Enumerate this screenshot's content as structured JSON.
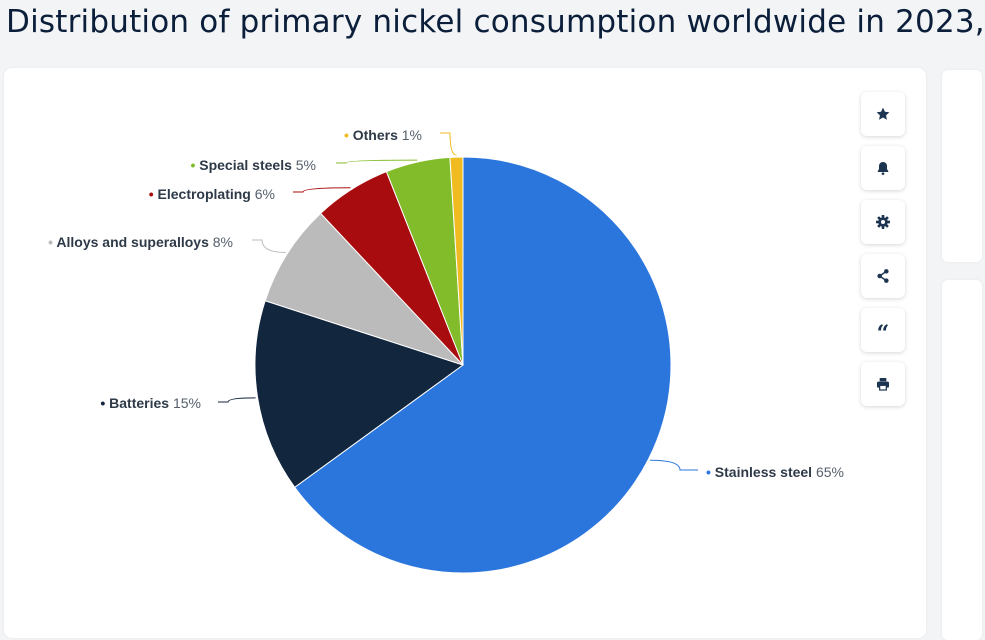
{
  "page": {
    "title": "Distribution of primary nickel consumption worldwide in 2023,"
  },
  "toolbar": {
    "items": [
      {
        "icon": "star-icon",
        "action": "favorite"
      },
      {
        "icon": "bell-icon",
        "action": "notification"
      },
      {
        "icon": "gear-icon",
        "action": "settings"
      },
      {
        "icon": "share-icon",
        "action": "share"
      },
      {
        "icon": "quote-icon",
        "action": "cite",
        "glyph": "“"
      },
      {
        "icon": "printer-icon",
        "action": "print"
      }
    ]
  },
  "chart_data": {
    "type": "pie",
    "unit": "%",
    "start_angle": 0,
    "direction": "clockwise",
    "slices": [
      {
        "label": "Stainless steel",
        "value": 65,
        "display": "65%",
        "color": "#2a76dd"
      },
      {
        "label": "Batteries",
        "value": 15,
        "display": "15%",
        "color": "#12263d"
      },
      {
        "label": "Alloys and superalloys",
        "value": 8,
        "display": "8%",
        "color": "#bbbbbb"
      },
      {
        "label": "Electroplating",
        "value": 6,
        "display": "6%",
        "color": "#a80c0e"
      },
      {
        "label": "Special steels",
        "value": 5,
        "display": "5%",
        "color": "#83bc2a"
      },
      {
        "label": "Others",
        "value": 1,
        "display": "1%",
        "color": "#f0bb20"
      }
    ]
  }
}
